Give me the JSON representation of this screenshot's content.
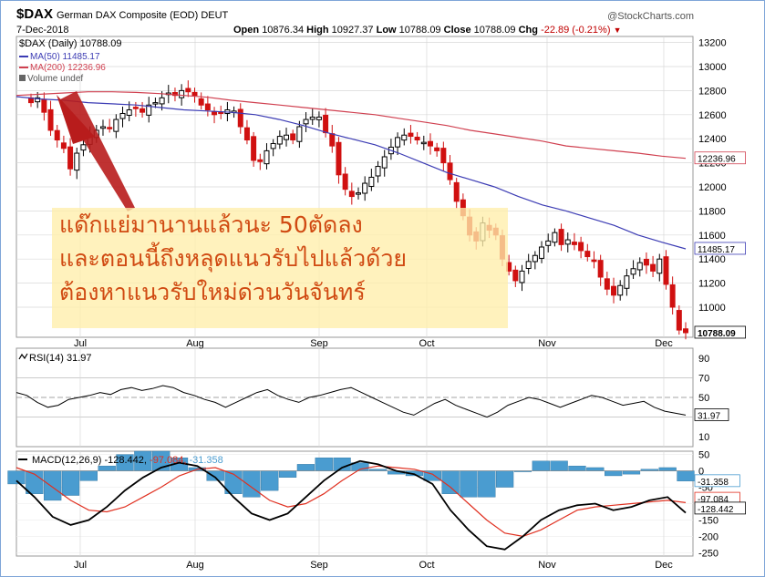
{
  "header": {
    "symbol": "$DAX",
    "name": "German DAX Composite (EOD)",
    "exchange": "DEUT",
    "watermark": "@StockCharts.com",
    "date": "7-Dec-2018",
    "open_label": "Open",
    "open": "10876.34",
    "high_label": "High",
    "high": "10927.37",
    "low_label": "Low",
    "low": "10788.09",
    "close_label": "Close",
    "close": "10788.09",
    "chg_label": "Chg",
    "chg": "-22.89 (-0.21%)",
    "chg_arrow": "▼"
  },
  "legend": {
    "price": "$DAX (Daily) 10788.09",
    "ma50": "MA(50) 11485.17",
    "ma200": "MA(200) 12236.96",
    "volume": "Volume undef"
  },
  "annotation": {
    "lines": [
      "แด๊กแย่มานานแล้วนะ 50ตัดลง",
      "และตอนนี้ถึงหลุดแนวรับไปแล้วด้วย",
      "ต้องหาแนวรับใหม่ด่วนวันจันทร์"
    ]
  },
  "colors": {
    "up_candle": "#000000",
    "down_candle": "#d01010",
    "ma50": "#3c3cb4",
    "ma200": "#d04050",
    "rsi": "#000000",
    "macd_line": "#000000",
    "signal_line": "#e03020",
    "histogram": "#4a9cd0",
    "arrow": "#b81c1c",
    "grid": "#d8d8d8"
  },
  "chart_data": [
    {
      "type": "candlestick",
      "title": "$DAX (Daily) 10788.09",
      "x_ticks": [
        "Jul",
        "Aug",
        "Sep",
        "Oct",
        "Nov",
        "Dec"
      ],
      "ylim": [
        10750,
        13250
      ],
      "y_ticks": [
        13200,
        13000,
        12800,
        12600,
        12400,
        12200,
        12000,
        11800,
        11600,
        11400,
        11200,
        11000
      ],
      "grid": true,
      "close_series": [
        12700,
        12740,
        12620,
        12470,
        12390,
        12320,
        12150,
        12280,
        12350,
        12430,
        12470,
        12500,
        12490,
        12560,
        12610,
        12640,
        12650,
        12620,
        12680,
        12700,
        12740,
        12780,
        12760,
        12800,
        12790,
        12760,
        12680,
        12640,
        12600,
        12610,
        12640,
        12630,
        12500,
        12390,
        12220,
        12210,
        12300,
        12360,
        12420,
        12430,
        12390,
        12500,
        12560,
        12580,
        12580,
        12450,
        12340,
        12100,
        11980,
        11920,
        11950,
        12030,
        12080,
        12170,
        12250,
        12330,
        12410,
        12430,
        12420,
        12390,
        12370,
        12340,
        12300,
        12200,
        12060,
        11880,
        11760,
        11600,
        11550,
        11700,
        11640,
        11600,
        11400,
        11300,
        11220,
        11300,
        11380,
        11430,
        11500,
        11550,
        11620,
        11520,
        11560,
        11520,
        11470,
        11420,
        11380,
        11250,
        11150,
        11100,
        11180,
        11260,
        11320,
        11370,
        11350,
        11300,
        11400,
        11190,
        11000,
        10810,
        10788
      ],
      "ma50": {
        "name": "MA(50) 11485.17",
        "values": [
          12750,
          12730,
          12720,
          12700,
          12690,
          12680,
          12660,
          12640,
          12630,
          12620,
          12600,
          12560,
          12510,
          12450,
          12400,
          12350,
          12280,
          12200,
          12120,
          12060,
          12000,
          11920,
          11850,
          11800,
          11740,
          11680,
          11600,
          11540,
          11485
        ]
      },
      "ma200": {
        "name": "MA(200) 12236.96",
        "values": [
          12760,
          12770,
          12780,
          12790,
          12790,
          12785,
          12775,
          12760,
          12745,
          12720,
          12700,
          12680,
          12660,
          12640,
          12620,
          12600,
          12570,
          12540,
          12510,
          12470,
          12440,
          12410,
          12380,
          12340,
          12320,
          12300,
          12280,
          12255,
          12237
        ]
      },
      "last_price": 10788.09
    },
    {
      "type": "line",
      "title": "RSI(14) 31.97",
      "ylim": [
        0,
        100
      ],
      "y_ticks": [
        90,
        70,
        50,
        30,
        10
      ],
      "reference_lines": [
        70,
        50,
        30
      ],
      "values": [
        55,
        52,
        45,
        40,
        42,
        48,
        50,
        52,
        55,
        53,
        58,
        60,
        57,
        59,
        62,
        60,
        55,
        52,
        48,
        45,
        40,
        45,
        50,
        55,
        58,
        52,
        48,
        45,
        50,
        52,
        55,
        58,
        60,
        55,
        50,
        45,
        40,
        35,
        32,
        38,
        44,
        48,
        42,
        38,
        34,
        30,
        35,
        42,
        46,
        50,
        48,
        44,
        40,
        44,
        48,
        52,
        50,
        46,
        42,
        44,
        46,
        40,
        36,
        34,
        32
      ],
      "last_value": 31.97
    },
    {
      "type": "line",
      "title": "MACD(12,26,9) -128.442, -97.084, -31.358",
      "ylim": [
        -260,
        60
      ],
      "y_ticks": [
        50,
        0,
        -50,
        -100,
        -150,
        -200,
        -250
      ],
      "series": [
        {
          "name": "-128.442",
          "values": [
            -30,
            -80,
            -140,
            -165,
            -150,
            -110,
            -60,
            -20,
            10,
            25,
            15,
            -20,
            -80,
            -130,
            -150,
            -130,
            -80,
            -30,
            10,
            30,
            20,
            0,
            -10,
            -40,
            -120,
            -180,
            -230,
            -240,
            -200,
            -150,
            -120,
            -105,
            -100,
            -120,
            -110,
            -90,
            -80,
            -128
          ]
        },
        {
          "name": "-97.084",
          "values": [
            10,
            -10,
            -50,
            -90,
            -120,
            -125,
            -110,
            -80,
            -50,
            -15,
            5,
            10,
            -10,
            -50,
            -90,
            -110,
            -100,
            -70,
            -30,
            5,
            15,
            10,
            5,
            -10,
            -50,
            -100,
            -150,
            -190,
            -200,
            -180,
            -150,
            -120,
            -110,
            -105,
            -100,
            -95,
            -90,
            -97
          ]
        },
        {
          "name": "-31.358",
          "values": [
            -40,
            -70,
            -90,
            -75,
            -30,
            15,
            50,
            60,
            60,
            40,
            10,
            -30,
            -70,
            -80,
            -60,
            -20,
            20,
            40,
            40,
            25,
            5,
            -10,
            -15,
            -30,
            -70,
            -80,
            -80,
            -50,
            0,
            30,
            30,
            15,
            10,
            -15,
            -10,
            5,
            10,
            -31
          ]
        }
      ],
      "last_values": [
        -31.358,
        -97.084,
        -128.442
      ]
    }
  ]
}
